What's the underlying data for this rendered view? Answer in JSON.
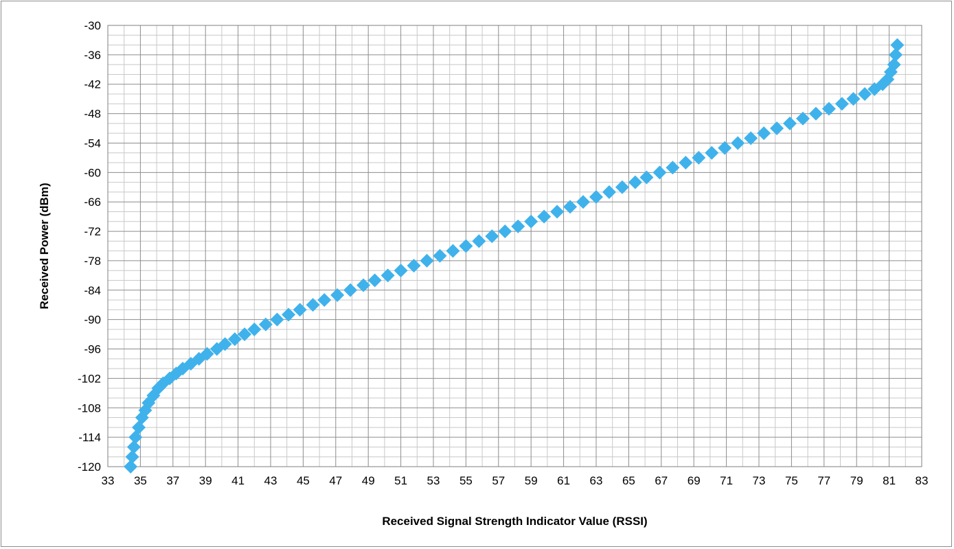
{
  "chart_data": {
    "type": "scatter",
    "xlabel": "Received Signal Strength Indicator Value (RSSI)",
    "ylabel": "Received Power (dBm)",
    "xlim": [
      33,
      83
    ],
    "ylim": [
      -120,
      -30
    ],
    "x_ticks": [
      "33",
      "35",
      "37",
      "39",
      "41",
      "43",
      "45",
      "47",
      "49",
      "51",
      "53",
      "55",
      "57",
      "59",
      "61",
      "63",
      "65",
      "67",
      "69",
      "71",
      "73",
      "75",
      "77",
      "79",
      "81",
      "83"
    ],
    "y_ticks": [
      "-30",
      "-36",
      "-42",
      "-48",
      "-54",
      "-60",
      "-66",
      "-72",
      "-78",
      "-84",
      "-90",
      "-96",
      "-102",
      "-108",
      "-114",
      "-120"
    ],
    "x_minor_step": 1,
    "y_minor_step": 2,
    "grid": true,
    "legend": "none",
    "marker": "diamond",
    "marker_color": "#3fb2ec",
    "series": [
      {
        "x": [
          34.4,
          34.5,
          34.6,
          34.7,
          34.9,
          35.1,
          35.3,
          35.5,
          35.8,
          36.1,
          36.4,
          36.8,
          37.2,
          37.6,
          38.1,
          38.6,
          39.1,
          39.7,
          40.2,
          40.8,
          41.4,
          42.0,
          42.7,
          43.4,
          44.1,
          44.8,
          45.6,
          46.3,
          47.1,
          47.9,
          48.7,
          49.4,
          50.2,
          51.0,
          51.8,
          52.6,
          53.4,
          54.2,
          55.0,
          55.8,
          56.6,
          57.4,
          58.2,
          59.0,
          59.8,
          60.6,
          61.4,
          62.2,
          63.0,
          63.8,
          64.6,
          65.4,
          66.1,
          66.9,
          67.7,
          68.5,
          69.3,
          70.1,
          70.9,
          71.7,
          72.5,
          73.3,
          74.1,
          74.9,
          75.7,
          76.5,
          77.3,
          78.1,
          78.8,
          79.5,
          80.1,
          80.6,
          80.9,
          81.1,
          81.3,
          81.4,
          81.5
        ],
        "y": [
          -120,
          -118,
          -116,
          -114,
          -112,
          -110,
          -108.5,
          -107,
          -105.5,
          -104,
          -103,
          -102,
          -101,
          -100,
          -99,
          -98,
          -97,
          -96,
          -95,
          -94,
          -93,
          -92,
          -91,
          -90,
          -89,
          -88,
          -87,
          -86,
          -85,
          -84,
          -83,
          -82,
          -81,
          -80,
          -79,
          -78,
          -77,
          -76,
          -75,
          -74,
          -73,
          -72,
          -71,
          -70,
          -69,
          -68,
          -67,
          -66,
          -65,
          -64,
          -63,
          -62,
          -61,
          -60,
          -59,
          -58,
          -57,
          -56,
          -55,
          -54,
          -53,
          -52,
          -51,
          -50,
          -49,
          -48,
          -47,
          -46,
          -45,
          -44,
          -43,
          -42,
          -41,
          -39.5,
          -38,
          -36,
          -34
        ]
      }
    ]
  }
}
